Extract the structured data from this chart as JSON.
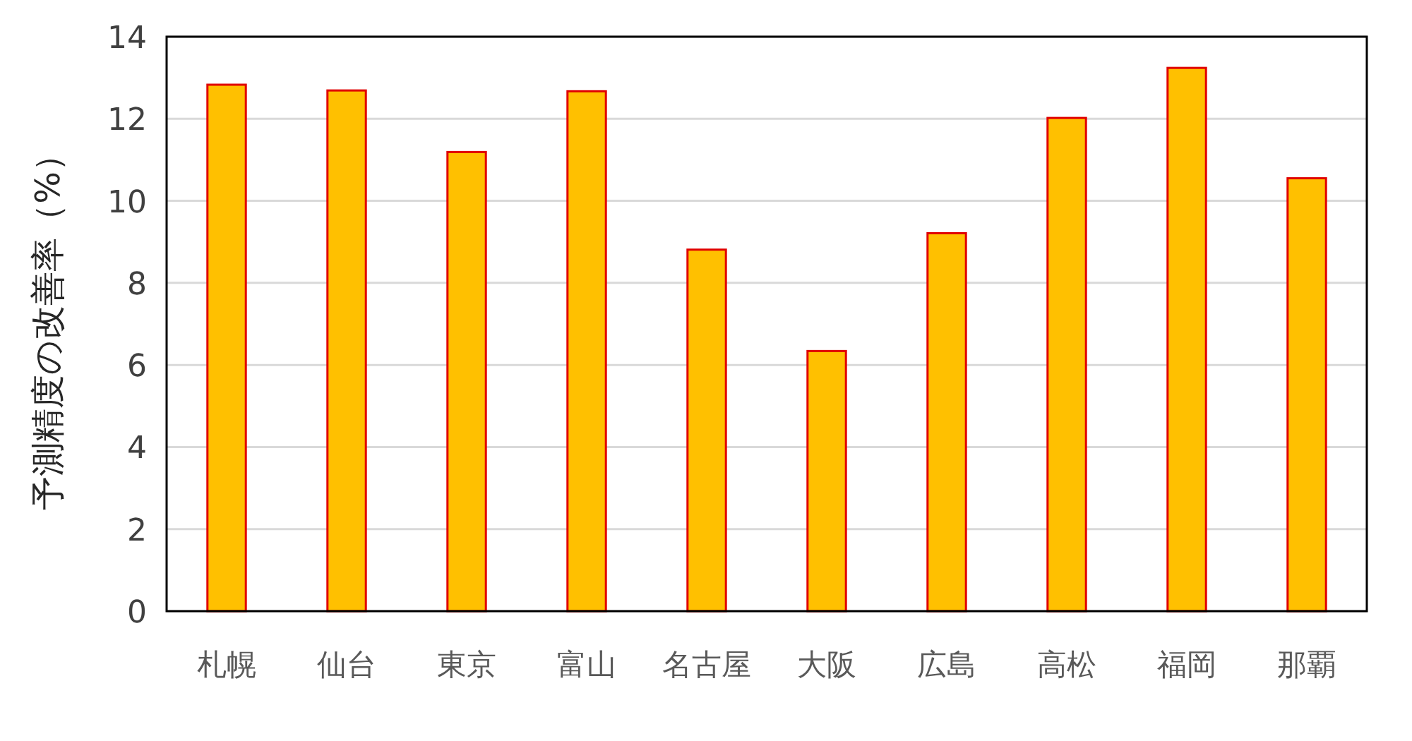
{
  "chart_data": {
    "type": "bar",
    "ylabel": "予測精度の改善率（%）",
    "categories": [
      "札幌",
      "仙台",
      "東京",
      "富山",
      "名古屋",
      "大阪",
      "広島",
      "高松",
      "福岡",
      "那覇"
    ],
    "values": [
      12.83,
      12.69,
      11.19,
      12.67,
      8.81,
      6.34,
      9.21,
      12.02,
      13.24,
      10.55
    ],
    "color": "#ffc000",
    "ylim": [
      0,
      14
    ],
    "yticks": [
      0,
      2,
      4,
      6,
      8,
      10,
      12,
      14
    ],
    "grid": "y"
  }
}
